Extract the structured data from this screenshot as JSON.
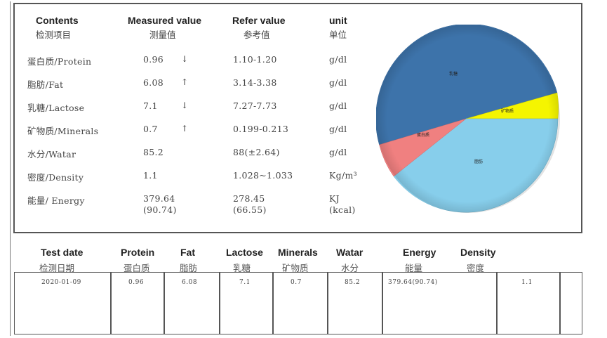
{
  "header": {
    "contents_en": "Contents",
    "contents_cn": "检测项目",
    "measured_en": "Measured value",
    "measured_cn": "测量值",
    "refer_en": "Refer value",
    "refer_cn": "参考值",
    "unit_en": "unit",
    "unit_cn": "单位"
  },
  "rows": [
    {
      "name": "蛋白质/Protein",
      "measured": "0.96",
      "arrow": "↓",
      "refer": "1.10-1.20",
      "unit": "g/dl"
    },
    {
      "name": "脂肪/Fat",
      "measured": "6.08",
      "arrow": "↑",
      "refer": "3.14-3.38",
      "unit": "g/dl"
    },
    {
      "name": "乳糖/Lactose",
      "measured": "7.1",
      "arrow": "↓",
      "refer": "7.27-7.73",
      "unit": "g/dl"
    },
    {
      "name": "矿物质/Minerals",
      "measured": "0.7",
      "arrow": "↑",
      "refer": "0.199-0.213",
      "unit": "g/dl"
    },
    {
      "name": "水分/Watar",
      "measured": "85.2",
      "arrow": "",
      "refer": "88(±2.64)",
      "unit": "g/dl"
    },
    {
      "name": "密度/Density",
      "measured": "1.1",
      "arrow": "",
      "refer": "1.028~1.033",
      "unit": "Kg/m³"
    }
  ],
  "energy": {
    "name": "能量/ Energy",
    "measured_line1": "379.64",
    "measured_line2": "(90.74)",
    "refer_line1": "278.45",
    "refer_line2": "(66.55)",
    "unit_line1": "KJ",
    "unit_line2": "(kcal)"
  },
  "pie": {
    "colors": {
      "lactose": "#3d73aa",
      "minerals": "#f5f500",
      "fat": "#87ceeb",
      "protein": "#f08080"
    },
    "labels": {
      "lactose": "乳糖",
      "minerals": "矿物质",
      "fat": "脂肪",
      "protein": "蛋白质"
    }
  },
  "bottom": {
    "headers": [
      {
        "en": "Test date",
        "cn": "检测日期"
      },
      {
        "en": "Protein",
        "cn": "蛋白质"
      },
      {
        "en": "Fat",
        "cn": "脂肪"
      },
      {
        "en": "Lactose",
        "cn": "乳糖"
      },
      {
        "en": "Minerals",
        "cn": "矿物质"
      },
      {
        "en": "Watar",
        "cn": "水分"
      },
      {
        "en": "Energy",
        "cn": "能量"
      },
      {
        "en": "Density",
        "cn": "密度"
      }
    ],
    "record": {
      "date": "2020-01-09",
      "protein": "0.96",
      "fat": "6.08",
      "lactose": "7.1",
      "minerals": "0.7",
      "water": "85.2",
      "energy": "379.64(90.74)",
      "density": "1.1"
    }
  }
}
